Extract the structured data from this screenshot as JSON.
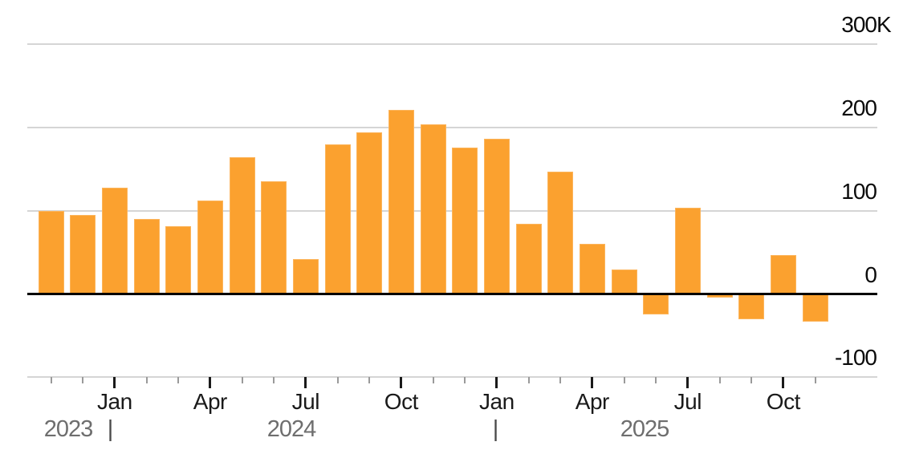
{
  "colors": {
    "bar": "#FBA12F",
    "gridline": "#D5D5D5",
    "zero_line": "#000000",
    "axis_baseline": "#CCCCCC",
    "minor_tick": "#9A9A9A",
    "major_tick": "#1A1A1A",
    "month_text": "#1A1A1A",
    "y_label_text": "#0B0B0B",
    "year_text": "#6E6E6E",
    "year_divider_text": "#4A4A4A",
    "background": "#FFFFFF"
  },
  "y_axis": {
    "ticks": [
      {
        "value": 300,
        "label": "300",
        "suffix": "K"
      },
      {
        "value": 200,
        "label": "200",
        "suffix": ""
      },
      {
        "value": 100,
        "label": "100",
        "suffix": ""
      },
      {
        "value": 0,
        "label": "0",
        "suffix": ""
      },
      {
        "value": -100,
        "label": "-100",
        "suffix": ""
      }
    ]
  },
  "x_axis": {
    "major_ticks": [
      {
        "label": "Jan",
        "index": 2
      },
      {
        "label": "Apr",
        "index": 5
      },
      {
        "label": "Jul",
        "index": 8
      },
      {
        "label": "Oct",
        "index": 11
      },
      {
        "label": "Jan",
        "index": 14
      },
      {
        "label": "Apr",
        "index": 17
      },
      {
        "label": "Jul",
        "index": 20
      },
      {
        "label": "Oct",
        "index": 23
      }
    ],
    "year_row": [
      {
        "text": "2023",
        "type": "year"
      },
      {
        "text": "|",
        "type": "divider"
      },
      {
        "text": "2024",
        "type": "year"
      },
      {
        "text": "|",
        "type": "divider"
      },
      {
        "text": "2025",
        "type": "year"
      }
    ]
  },
  "chart_data": {
    "type": "bar",
    "unit": "thousands (K)",
    "ylim": [
      -100,
      300
    ],
    "y_gridlines": [
      300,
      200,
      100,
      0,
      -100
    ],
    "grid": "horizontal",
    "legend": "none",
    "x": [
      "Nov 2023",
      "Dec 2023",
      "Jan 2024",
      "Feb 2024",
      "Mar 2024",
      "Apr 2024",
      "May 2024",
      "Jun 2024",
      "Jul 2024",
      "Aug 2024",
      "Sep 2024",
      "Oct 2024",
      "Nov 2024",
      "Dec 2024",
      "Jan 2025",
      "Feb 2025",
      "Mar 2025",
      "Apr 2025",
      "May 2025",
      "Jun 2025",
      "Jul 2025",
      "Aug 2025",
      "Sep 2025",
      "Oct 2025",
      "Nov 2025"
    ],
    "values": [
      100,
      95,
      128,
      90,
      81,
      112,
      164,
      135,
      42,
      180,
      194,
      221,
      204,
      176,
      186,
      84,
      147,
      60,
      29,
      -23,
      104,
      -3,
      -29,
      47,
      -32
    ]
  }
}
